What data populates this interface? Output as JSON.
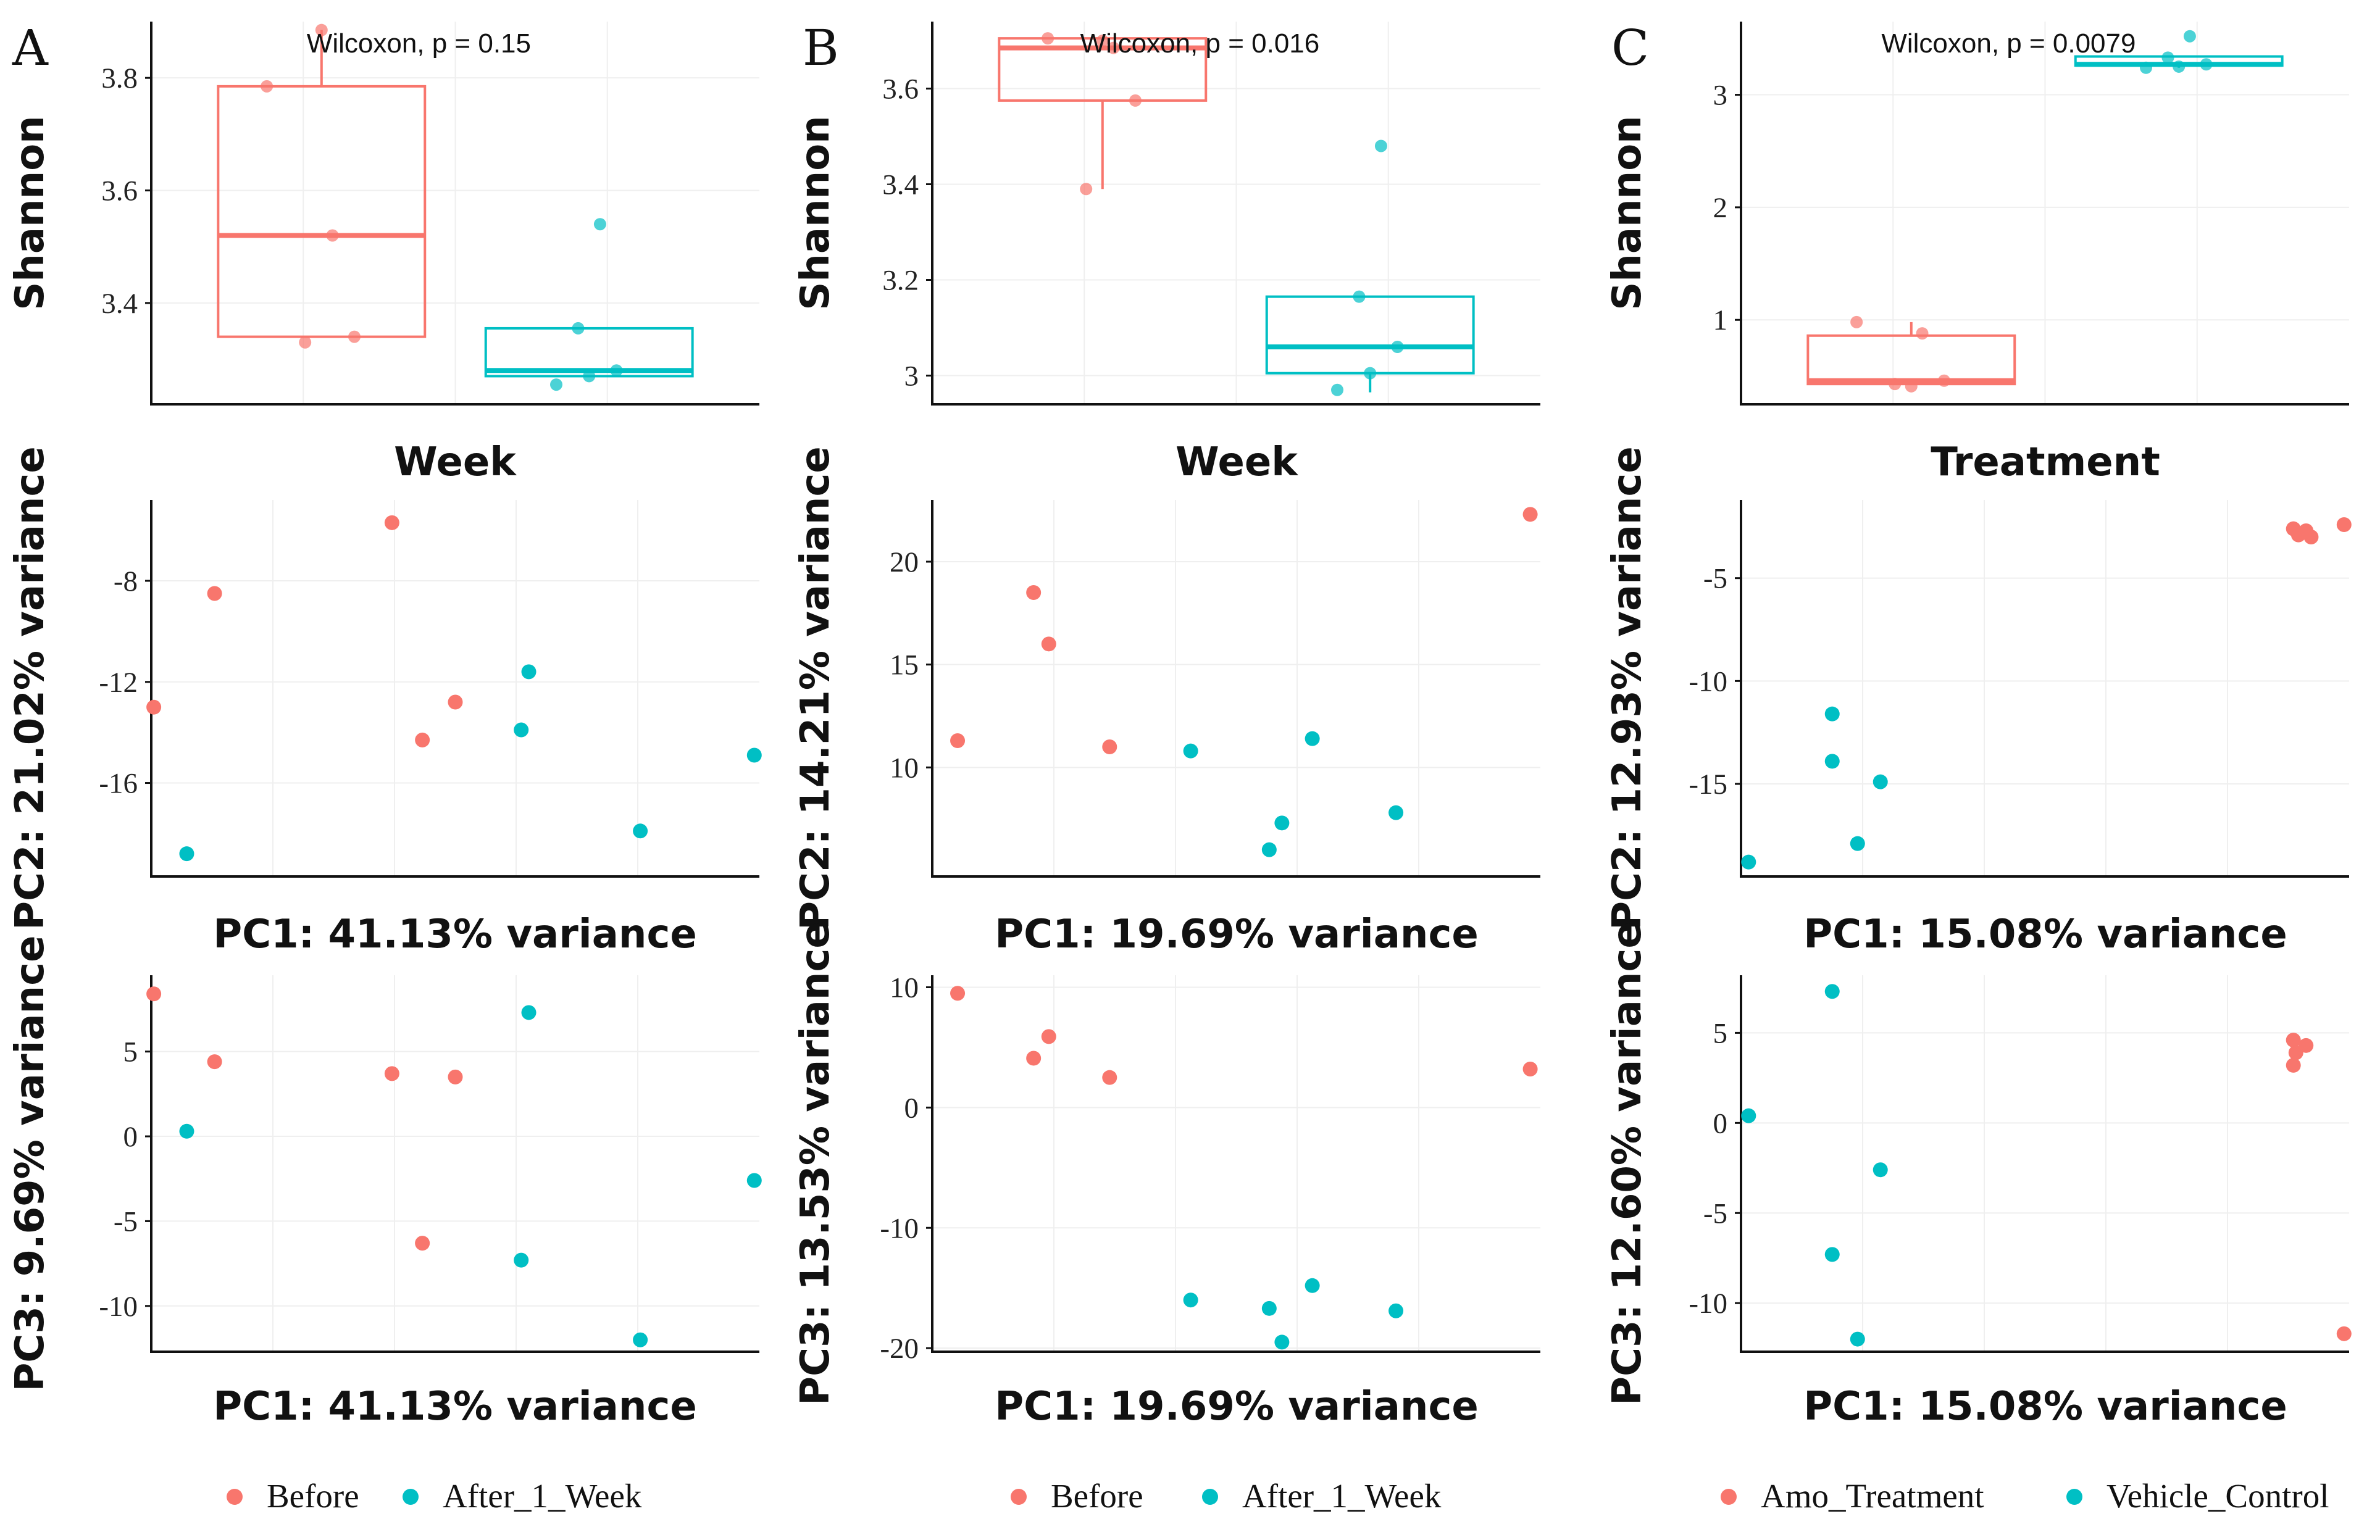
{
  "colors": {
    "group1": "#F8766D",
    "group2": "#00BFC4"
  },
  "panels": [
    {
      "letter": "A",
      "legend": [
        "Before",
        "After_1_Week"
      ]
    },
    {
      "letter": "B",
      "legend": [
        "Before",
        "After_1_Week"
      ]
    },
    {
      "letter": "C",
      "legend": [
        "Amo_Treatment",
        "Vehicle_Control"
      ]
    }
  ],
  "chart_data": [
    {
      "id": "A1",
      "type": "box",
      "panel": "A",
      "title": "",
      "stat_label": "Wilcoxon, p = 0.15",
      "xlabel": "Week",
      "ylabel": "Shannon",
      "ylim": [
        3.22,
        3.9
      ],
      "yticks": [
        3.4,
        3.6,
        3.8
      ],
      "series": [
        {
          "name": "Before",
          "q1": 3.34,
          "median": 3.52,
          "q3": 3.785,
          "whisker_low": 3.34,
          "whisker_high": 3.885,
          "points": [
            3.785,
            3.52,
            3.34,
            3.33,
            3.885
          ]
        },
        {
          "name": "After_1_Week",
          "q1": 3.27,
          "median": 3.28,
          "q3": 3.355,
          "whisker_low": 3.27,
          "whisker_high": 3.355,
          "points": [
            3.54,
            3.355,
            3.28,
            3.27,
            3.255
          ]
        }
      ]
    },
    {
      "id": "B1",
      "type": "box",
      "panel": "B",
      "stat_label": "Wilcoxon, p = 0.016",
      "xlabel": "Week",
      "ylabel": "Shannon",
      "ylim": [
        2.94,
        3.74
      ],
      "yticks": [
        3.0,
        3.2,
        3.4,
        3.6
      ],
      "series": [
        {
          "name": "Before",
          "q1": 3.575,
          "median": 3.685,
          "q3": 3.705,
          "whisker_low": 3.39,
          "whisker_high": 3.705,
          "points": [
            3.705,
            3.685,
            3.575,
            3.39,
            3.7
          ]
        },
        {
          "name": "After_1_Week",
          "q1": 3.005,
          "median": 3.06,
          "q3": 3.165,
          "whisker_low": 2.965,
          "whisker_high": 3.165,
          "points": [
            3.48,
            3.165,
            3.06,
            3.005,
            2.97
          ]
        }
      ]
    },
    {
      "id": "C1",
      "type": "box",
      "panel": "C",
      "stat_label": "Wilcoxon, p = 0.0079",
      "xlabel": "Treatment",
      "ylabel": "Shannon",
      "ylim": [
        0.25,
        3.65
      ],
      "yticks": [
        1,
        2,
        3
      ],
      "series": [
        {
          "name": "Amo_Treatment",
          "q1": 0.43,
          "median": 0.46,
          "q3": 0.86,
          "whisker_low": 0.43,
          "whisker_high": 0.98,
          "points": [
            0.98,
            0.88,
            0.46,
            0.43,
            0.41
          ]
        },
        {
          "name": "Vehicle_Control",
          "q1": 3.26,
          "median": 3.27,
          "q3": 3.34,
          "whisker_low": 3.24,
          "whisker_high": 3.34,
          "points": [
            3.52,
            3.33,
            3.27,
            3.25,
            3.24
          ]
        }
      ]
    },
    {
      "id": "A2",
      "type": "scatter",
      "panel": "A",
      "xlabel": "PC1: 41.13% variance",
      "ylabel": "PC2: 21.02% variance",
      "xlim": [
        -12,
        12
      ],
      "ylim": [
        -19.7,
        -4.8
      ],
      "yticks": [
        -8,
        -12,
        -16
      ],
      "series": [
        {
          "name": "Before",
          "points": [
            [
              -11.9,
              -13.0
            ],
            [
              -9.5,
              -8.5
            ],
            [
              -2.5,
              -5.7
            ],
            [
              -1.3,
              -14.3
            ],
            [
              0.0,
              -12.8
            ]
          ]
        },
        {
          "name": "After_1_Week",
          "points": [
            [
              -10.6,
              -18.8
            ],
            [
              2.6,
              -13.9
            ],
            [
              2.9,
              -11.6
            ],
            [
              7.3,
              -17.9
            ],
            [
              11.8,
              -14.9
            ]
          ]
        }
      ]
    },
    {
      "id": "B2",
      "type": "scatter",
      "panel": "B",
      "xlabel": "PC1: 19.69% variance",
      "ylabel": "PC2: 14.21% variance",
      "xlim": [
        -12,
        12
      ],
      "ylim": [
        4.7,
        23.0
      ],
      "yticks": [
        10,
        15,
        20
      ],
      "series": [
        {
          "name": "Before",
          "points": [
            [
              -11.0,
              11.3
            ],
            [
              -8.0,
              18.5
            ],
            [
              -7.4,
              16.0
            ],
            [
              -5.0,
              11.0
            ],
            [
              11.6,
              22.3
            ]
          ]
        },
        {
          "name": "After_1_Week",
          "points": [
            [
              -1.8,
              10.8
            ],
            [
              1.3,
              6.0
            ],
            [
              1.8,
              7.3
            ],
            [
              3.0,
              11.4
            ],
            [
              6.3,
              7.8
            ]
          ]
        }
      ]
    },
    {
      "id": "C2",
      "type": "scatter",
      "panel": "C",
      "xlabel": "PC1: 15.08% variance",
      "ylabel": "PC2: 12.93% variance",
      "xlim": [
        -12,
        12
      ],
      "ylim": [
        -19.5,
        -1.2
      ],
      "yticks": [
        -5,
        -10,
        -15
      ],
      "series": [
        {
          "name": "Amo_Treatment",
          "points": [
            [
              9.8,
              -2.6
            ],
            [
              10.0,
              -2.9
            ],
            [
              10.3,
              -2.7
            ],
            [
              10.5,
              -3.0
            ],
            [
              11.8,
              -2.4
            ]
          ]
        },
        {
          "name": "Vehicle_Control",
          "points": [
            [
              -11.7,
              -18.8
            ],
            [
              -8.4,
              -11.6
            ],
            [
              -8.4,
              -13.9
            ],
            [
              -7.4,
              -17.9
            ],
            [
              -6.5,
              -14.9
            ]
          ]
        }
      ]
    },
    {
      "id": "A3",
      "type": "scatter",
      "panel": "A",
      "xlabel": "PC1: 41.13% variance",
      "ylabel": "PC3:  9.69% variance",
      "xlim": [
        -12,
        12
      ],
      "ylim": [
        -12.7,
        9.5
      ],
      "yticks": [
        5,
        0,
        -5,
        -10
      ],
      "series": [
        {
          "name": "Before",
          "points": [
            [
              -11.9,
              8.4
            ],
            [
              -9.5,
              4.4
            ],
            [
              -2.5,
              3.7
            ],
            [
              -1.3,
              -6.3
            ],
            [
              0.0,
              3.5
            ]
          ]
        },
        {
          "name": "After_1_Week",
          "points": [
            [
              -10.6,
              0.3
            ],
            [
              2.6,
              -7.3
            ],
            [
              2.9,
              7.3
            ],
            [
              7.3,
              -12.0
            ],
            [
              11.8,
              -2.6
            ]
          ]
        }
      ]
    },
    {
      "id": "B3",
      "type": "scatter",
      "panel": "B",
      "xlabel": "PC1: 19.69% variance",
      "ylabel": "PC3: 13.53% variance",
      "xlim": [
        -12,
        12
      ],
      "ylim": [
        -20.3,
        11.0
      ],
      "yticks": [
        10,
        0,
        -10,
        -20
      ],
      "series": [
        {
          "name": "Before",
          "points": [
            [
              -11.0,
              9.5
            ],
            [
              -8.0,
              4.1
            ],
            [
              -7.4,
              5.9
            ],
            [
              -5.0,
              2.5
            ],
            [
              11.6,
              3.2
            ]
          ]
        },
        {
          "name": "After_1_Week",
          "points": [
            [
              -1.8,
              -16.0
            ],
            [
              1.3,
              -16.7
            ],
            [
              1.8,
              -19.5
            ],
            [
              3.0,
              -14.8
            ],
            [
              6.3,
              -16.9
            ]
          ]
        }
      ]
    },
    {
      "id": "C3",
      "type": "scatter",
      "panel": "C",
      "xlabel": "PC1: 15.08% variance",
      "ylabel": "PC3: 12.60% variance",
      "xlim": [
        -12,
        12
      ],
      "ylim": [
        -12.7,
        8.2
      ],
      "yticks": [
        5,
        0,
        -5,
        -10
      ],
      "series": [
        {
          "name": "Amo_Treatment",
          "points": [
            [
              9.8,
              4.6
            ],
            [
              9.8,
              3.2
            ],
            [
              9.9,
              3.9
            ],
            [
              10.3,
              4.3
            ],
            [
              11.8,
              -11.7
            ]
          ]
        },
        {
          "name": "Vehicle_Control",
          "points": [
            [
              -11.7,
              0.4
            ],
            [
              -8.4,
              7.3
            ],
            [
              -8.4,
              -7.3
            ],
            [
              -7.4,
              -12.0
            ],
            [
              -6.5,
              -2.6
            ]
          ]
        }
      ]
    }
  ]
}
